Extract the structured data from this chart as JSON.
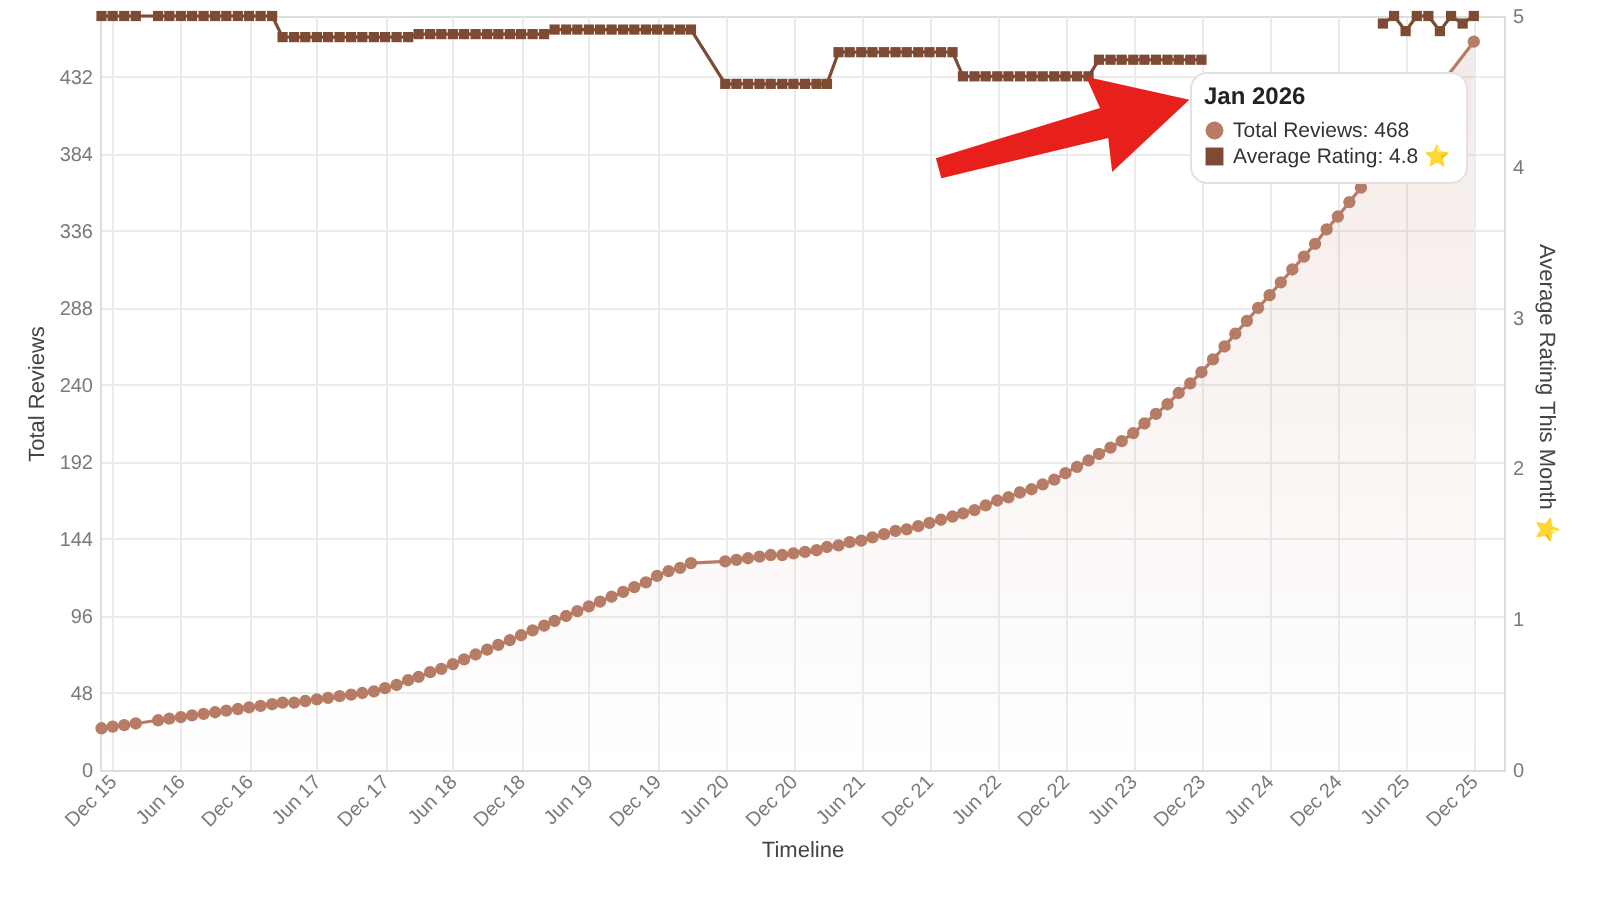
{
  "chart_data": {
    "type": "line",
    "xlabel": "Timeline",
    "ylabel": "Total Reviews",
    "y2label": "Average Rating This Month ⭐",
    "legend_title": "Jan 2026",
    "legend": "top right",
    "grid": true,
    "x": [
      "2015-11",
      "2015-12",
      "2016-01",
      "2016-02",
      "2016-04",
      "2016-05",
      "2016-06",
      "2016-07",
      "2016-08",
      "2016-09",
      "2016-10",
      "2016-11",
      "2016-12",
      "2017-01",
      "2017-02",
      "2017-03",
      "2017-04",
      "2017-05",
      "2017-06",
      "2017-07",
      "2017-08",
      "2017-09",
      "2017-10",
      "2017-11",
      "2017-12",
      "2018-01",
      "2018-02",
      "2018-03",
      "2018-04",
      "2018-05",
      "2018-06",
      "2018-07",
      "2018-08",
      "2018-09",
      "2018-10",
      "2018-11",
      "2018-12",
      "2019-01",
      "2019-02",
      "2019-03",
      "2019-04",
      "2019-05",
      "2019-06",
      "2019-07",
      "2019-08",
      "2019-09",
      "2019-10",
      "2019-11",
      "2019-12",
      "2020-01",
      "2020-02",
      "2020-03",
      "2020-06",
      "2020-07",
      "2020-08",
      "2020-09",
      "2020-10",
      "2020-11",
      "2020-12",
      "2021-01",
      "2021-02",
      "2021-03",
      "2021-04",
      "2021-05",
      "2021-06",
      "2021-07",
      "2021-08",
      "2021-09",
      "2021-10",
      "2021-11",
      "2021-12",
      "2022-01",
      "2022-02",
      "2022-03",
      "2022-04",
      "2022-05",
      "2022-06",
      "2022-07",
      "2022-08",
      "2022-09",
      "2022-10",
      "2022-11",
      "2022-12",
      "2023-01",
      "2023-02",
      "2023-03",
      "2023-04",
      "2023-05",
      "2023-06",
      "2023-07",
      "2023-08",
      "2023-09",
      "2023-10",
      "2023-11",
      "2023-12",
      "2024-01",
      "2024-02",
      "2024-03",
      "2024-04",
      "2024-05",
      "2024-06",
      "2024-07",
      "2024-08",
      "2024-09",
      "2024-10",
      "2024-11",
      "2024-12",
      "2025-01",
      "2025-02",
      "2025-03",
      "2025-04",
      "2025-05",
      "2025-06",
      "2025-07",
      "2025-08",
      "2025-09",
      "2025-10",
      "2025-11",
      "2025-12"
    ],
    "xlim": [
      "2015-10-28",
      "2026-02-20"
    ],
    "xticks": [
      {
        "value": "2015-12",
        "label": "Dec 15"
      },
      {
        "value": "2016-06",
        "label": "Jun 16"
      },
      {
        "value": "2016-12",
        "label": "Dec 16"
      },
      {
        "value": "2017-06",
        "label": "Jun 17"
      },
      {
        "value": "2017-12",
        "label": "Dec 17"
      },
      {
        "value": "2018-06",
        "label": "Jun 18"
      },
      {
        "value": "2018-12",
        "label": "Dec 18"
      },
      {
        "value": "2019-06",
        "label": "Jun 19"
      },
      {
        "value": "2019-12",
        "label": "Dec 19"
      },
      {
        "value": "2020-06",
        "label": "Jun 20"
      },
      {
        "value": "2020-12",
        "label": "Dec 20"
      },
      {
        "value": "2021-06",
        "label": "Jun 21"
      },
      {
        "value": "2021-12",
        "label": "Dec 21"
      },
      {
        "value": "2022-06",
        "label": "Jun 22"
      },
      {
        "value": "2022-12",
        "label": "Dec 22"
      },
      {
        "value": "2023-06",
        "label": "Jun 23"
      },
      {
        "value": "2023-12",
        "label": "Dec 23"
      },
      {
        "value": "2024-06",
        "label": "Jun 24"
      },
      {
        "value": "2024-12",
        "label": "Dec 24"
      },
      {
        "value": "2025-06",
        "label": "Jun 25"
      },
      {
        "value": "2025-12",
        "label": "Dec 25"
      }
    ],
    "ylim": [
      0,
      470
    ],
    "yticks": [
      0,
      48,
      96,
      144,
      192,
      240,
      288,
      336,
      384,
      432
    ],
    "y2lim": [
      0,
      5
    ],
    "y2ticks": [
      0,
      1,
      2,
      3,
      4,
      5
    ],
    "series": [
      {
        "name": "Total Reviews: 468",
        "type": "area",
        "color": "#b77c66",
        "marker": "circle",
        "values": [
          26,
          27,
          28,
          29,
          31,
          32,
          33,
          34,
          35,
          36,
          37,
          38,
          39,
          40,
          41,
          42,
          42,
          43,
          44,
          45,
          46,
          47,
          48,
          49,
          51,
          53,
          56,
          58,
          61,
          63,
          66,
          69,
          72,
          75,
          78,
          81,
          84,
          87,
          90,
          93,
          96,
          99,
          102,
          105,
          108,
          111,
          114,
          117,
          121,
          124,
          126,
          129,
          130,
          131,
          132,
          133,
          134,
          134,
          135,
          136,
          137,
          139,
          140,
          142,
          143,
          145,
          147,
          149,
          150,
          152,
          154,
          156,
          158,
          160,
          162,
          165,
          168,
          170,
          173,
          175,
          178,
          181,
          185,
          189,
          193,
          197,
          201,
          205,
          210,
          216,
          222,
          228,
          235,
          241,
          248,
          256,
          264,
          272,
          280,
          288,
          296,
          304,
          312,
          320,
          328,
          337,
          345,
          354,
          363,
          null,
          null,
          null,
          null,
          null,
          null,
          null,
          null,
          null,
          454
        ]
      },
      {
        "name": "Average Rating: 4.8 ⭐",
        "axis": "y2",
        "color": "#7d4a33",
        "marker": "square",
        "values": [
          5.0,
          5.0,
          5.0,
          5.0,
          5.0,
          5.0,
          5.0,
          5.0,
          5.0,
          5.0,
          5.0,
          5.0,
          5.0,
          5.0,
          5.0,
          4.86,
          4.86,
          4.86,
          4.86,
          4.86,
          4.86,
          4.86,
          4.86,
          4.86,
          4.86,
          4.86,
          4.86,
          4.88,
          4.88,
          4.88,
          4.88,
          4.88,
          4.88,
          4.88,
          4.88,
          4.88,
          4.88,
          4.88,
          4.88,
          4.91,
          4.91,
          4.91,
          4.91,
          4.91,
          4.91,
          4.91,
          4.91,
          4.91,
          4.91,
          4.91,
          4.91,
          4.91,
          4.55,
          4.55,
          4.55,
          4.55,
          4.55,
          4.55,
          4.55,
          4.55,
          4.55,
          4.55,
          4.76,
          4.76,
          4.76,
          4.76,
          4.76,
          4.76,
          4.76,
          4.76,
          4.76,
          4.76,
          4.76,
          4.6,
          4.6,
          4.6,
          4.6,
          4.6,
          4.6,
          4.6,
          4.6,
          4.6,
          4.6,
          4.6,
          4.6,
          4.71,
          4.71,
          4.71,
          4.71,
          4.71,
          4.71,
          4.71,
          4.71,
          4.71,
          4.71,
          null,
          null,
          null,
          null,
          null,
          null,
          null,
          null,
          null,
          null,
          null,
          null,
          null,
          null,
          null,
          4.95,
          5.0,
          4.9,
          5.0,
          5.0,
          4.9,
          5.0,
          4.95,
          5.0
        ]
      }
    ]
  }
}
